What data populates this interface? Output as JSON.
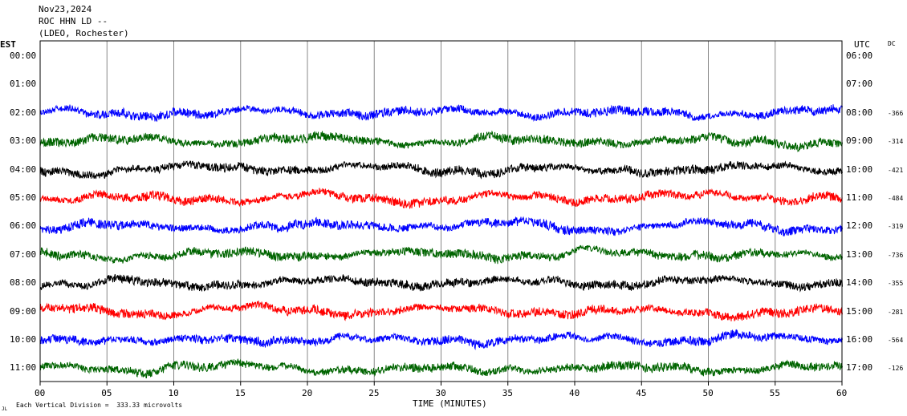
{
  "header": {
    "date": "Nov23,2024",
    "station": "ROC HHN LD --",
    "network": "(LDEO, Rochester)"
  },
  "labels": {
    "left_zone": "EST",
    "right_zone": "UTC",
    "dc": "DC",
    "xlabel": "TIME (MINUTES)",
    "scale_note": "Each Vertical Division =  333.33 microvolts",
    "corner_mark": "JL"
  },
  "colors": {
    "blue": "#0000ff",
    "green": "#006400",
    "black": "#000000",
    "red": "#ff0000",
    "grid": "#888888"
  },
  "chart_data": {
    "type": "line",
    "title": "Nov23,2024 ROC HHN LD -- (LDEO, Rochester)",
    "xlabel": "TIME (MINUTES)",
    "xlim": [
      0,
      60
    ],
    "x_ticks": [
      "00",
      "05",
      "10",
      "15",
      "20",
      "25",
      "30",
      "35",
      "40",
      "45",
      "50",
      "55",
      "60"
    ],
    "rows_est": [
      "00:00",
      "01:00",
      "02:00",
      "03:00",
      "04:00",
      "05:00",
      "06:00",
      "07:00",
      "08:00",
      "09:00",
      "10:00",
      "11:00"
    ],
    "rows_utc": [
      "06:00",
      "07:00",
      "08:00",
      "09:00",
      "10:00",
      "11:00",
      "12:00",
      "13:00",
      "14:00",
      "15:00",
      "16:00",
      "17:00"
    ],
    "traces": [
      {
        "row": 2,
        "color": "blue",
        "dc": "-366"
      },
      {
        "row": 3,
        "color": "green",
        "dc": "-314"
      },
      {
        "row": 4,
        "color": "black",
        "dc": "-421"
      },
      {
        "row": 5,
        "color": "red",
        "dc": "-484"
      },
      {
        "row": 6,
        "color": "blue",
        "dc": "-319"
      },
      {
        "row": 7,
        "color": "green",
        "dc": "-736"
      },
      {
        "row": 8,
        "color": "black",
        "dc": "-355"
      },
      {
        "row": 9,
        "color": "red",
        "dc": "-281"
      },
      {
        "row": 10,
        "color": "blue",
        "dc": "-564"
      },
      {
        "row": 11,
        "color": "green",
        "dc": "-126"
      }
    ]
  }
}
